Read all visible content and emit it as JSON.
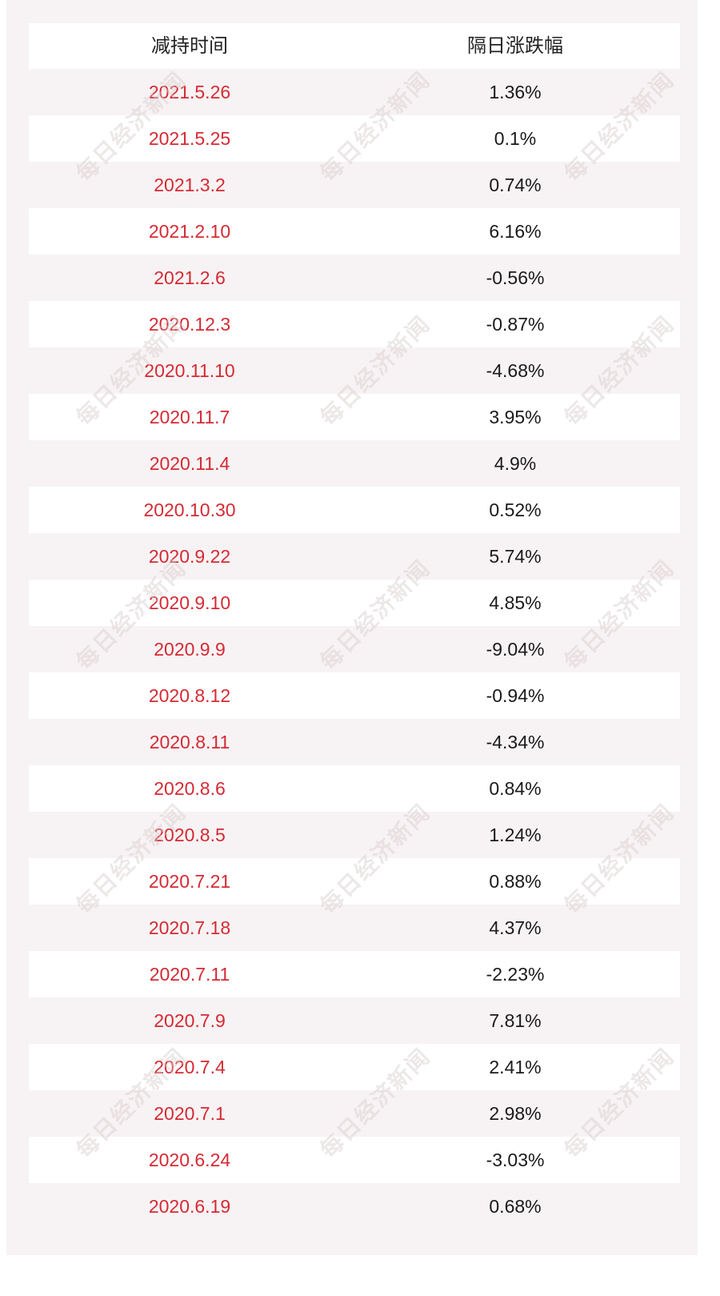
{
  "table": {
    "headers": {
      "date": "减持时间",
      "change": "隔日涨跌幅"
    },
    "rows": [
      {
        "date": "2021.5.26",
        "change": "1.36%"
      },
      {
        "date": "2021.5.25",
        "change": "0.1%"
      },
      {
        "date": "2021.3.2",
        "change": "0.74%"
      },
      {
        "date": "2021.2.10",
        "change": "6.16%"
      },
      {
        "date": "2021.2.6",
        "change": "-0.56%"
      },
      {
        "date": "2020.12.3",
        "change": "-0.87%"
      },
      {
        "date": "2020.11.10",
        "change": "-4.68%"
      },
      {
        "date": "2020.11.7",
        "change": "3.95%"
      },
      {
        "date": "2020.11.4",
        "change": "4.9%"
      },
      {
        "date": "2020.10.30",
        "change": "0.52%"
      },
      {
        "date": "2020.9.22",
        "change": "5.74%"
      },
      {
        "date": "2020.9.10",
        "change": "4.85%"
      },
      {
        "date": "2020.9.9",
        "change": "-9.04%"
      },
      {
        "date": "2020.8.12",
        "change": "-0.94%"
      },
      {
        "date": "2020.8.11",
        "change": "-4.34%"
      },
      {
        "date": "2020.8.6",
        "change": "0.84%"
      },
      {
        "date": "2020.8.5",
        "change": "1.24%"
      },
      {
        "date": "2020.7.21",
        "change": "0.88%"
      },
      {
        "date": "2020.7.18",
        "change": "4.37%"
      },
      {
        "date": "2020.7.11",
        "change": "-2.23%"
      },
      {
        "date": "2020.7.9",
        "change": "7.81%"
      },
      {
        "date": "2020.7.4",
        "change": "2.41%"
      },
      {
        "date": "2020.7.1",
        "change": "2.98%"
      },
      {
        "date": "2020.6.24",
        "change": "-3.03%"
      },
      {
        "date": "2020.6.19",
        "change": "0.68%"
      }
    ]
  },
  "watermark": {
    "text": "每日经济新闻"
  },
  "colors": {
    "date_text": "#d52a33",
    "value_text": "#1a1a1a",
    "panel_background": "#f7f3f4",
    "stripe_background": "#ffffff"
  }
}
